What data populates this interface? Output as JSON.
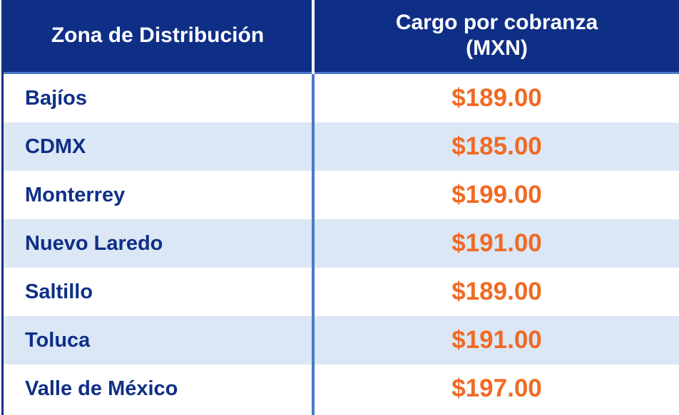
{
  "table": {
    "headers": {
      "zone": "Zona de Distribución",
      "charge_line1": "Cargo por cobranza",
      "charge_line2": "(MXN)"
    },
    "rows": [
      {
        "zone": "Bajíos",
        "amount": "$189.00"
      },
      {
        "zone": "CDMX",
        "amount": "$185.00"
      },
      {
        "zone": "Monterrey",
        "amount": "$199.00"
      },
      {
        "zone": "Nuevo Laredo",
        "amount": "$191.00"
      },
      {
        "zone": "Saltillo",
        "amount": "$189.00"
      },
      {
        "zone": "Toluca",
        "amount": "$191.00"
      },
      {
        "zone": "Valle de México",
        "amount": "$197.00"
      }
    ]
  },
  "colors": {
    "header_bg": "#0f2f86",
    "zone_text": "#0f2f86",
    "amount_text": "#f16a24",
    "alt_row_bg": "#dce7f6",
    "divider": "#4a79c8"
  }
}
